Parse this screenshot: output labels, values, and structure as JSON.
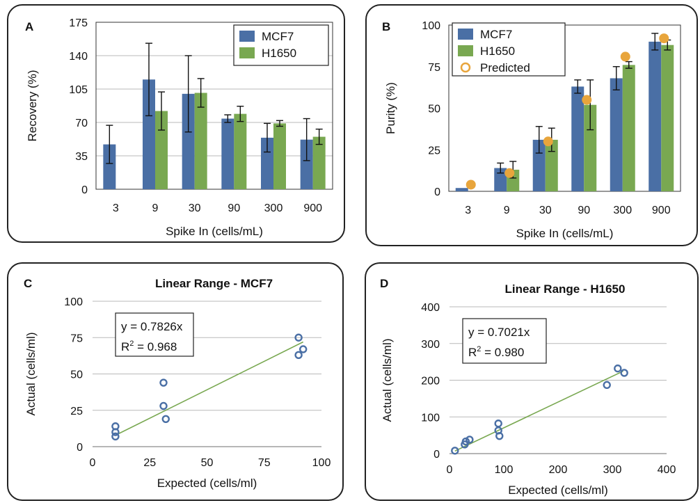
{
  "chart_data": [
    {
      "panel_letter": "A",
      "type": "bar",
      "ylabel": "Recovery (%)",
      "xlabel": "Spike In (cells/mL)",
      "ylim": [
        0,
        175
      ],
      "yticks": [
        0,
        35,
        70,
        105,
        140,
        175
      ],
      "grid": true,
      "legend_placement": "top-right",
      "categories": [
        "3",
        "9",
        "30",
        "90",
        "300",
        "900"
      ],
      "series": [
        {
          "name": "MCF7",
          "color": "#4a6fa5",
          "values": [
            47,
            115,
            100,
            74,
            54,
            52
          ],
          "errors": [
            20,
            38,
            40,
            4,
            15,
            22
          ]
        },
        {
          "name": "H1650",
          "color": "#79a851",
          "values": [
            null,
            82,
            101,
            79,
            69,
            55
          ],
          "errors": [
            null,
            20,
            15,
            8,
            3,
            8
          ]
        }
      ]
    },
    {
      "panel_letter": "B",
      "type": "bar",
      "ylabel": "Purity (%)",
      "xlabel": "Spike In (cells/mL)",
      "ylim": [
        0,
        100
      ],
      "yticks": [
        0,
        25,
        50,
        75,
        100
      ],
      "grid": false,
      "legend_placement": "top-left",
      "categories": [
        "3",
        "9",
        "30",
        "90",
        "300",
        "900"
      ],
      "series": [
        {
          "name": "MCF7",
          "color": "#4a6fa5",
          "values": [
            2,
            14,
            31,
            63,
            68,
            90
          ],
          "errors": [
            0,
            3,
            8,
            4,
            7,
            5
          ]
        },
        {
          "name": "H1650",
          "color": "#79a851",
          "values": [
            null,
            13,
            31,
            52,
            76,
            88
          ],
          "errors": [
            null,
            5,
            7,
            15,
            2,
            3
          ]
        }
      ],
      "points": {
        "name": "Predicted",
        "color": "#e8a53c",
        "values": [
          4,
          11,
          30,
          55,
          81,
          92
        ]
      }
    },
    {
      "panel_letter": "C",
      "type": "scatter",
      "title": "Linear Range - MCF7",
      "xlabel": "Expected (cells/ml)",
      "ylabel": "Actual (cells/ml)",
      "xlim": [
        0,
        100
      ],
      "ylim": [
        0,
        100
      ],
      "xticks": [
        0,
        25,
        50,
        75,
        100
      ],
      "yticks": [
        0,
        25,
        50,
        75,
        100
      ],
      "grid": true,
      "marker_color": "#4a6fa5",
      "line_color": "#79a851",
      "fit_slope": 0.7826,
      "fit_x_range": [
        10,
        92
      ],
      "equation": "y = 0.7826x",
      "r2_label": "R",
      "r2_sup": "2",
      "r2_value": " = 0.968",
      "points": [
        [
          10,
          14
        ],
        [
          10,
          10
        ],
        [
          10,
          7
        ],
        [
          31,
          44
        ],
        [
          31,
          28
        ],
        [
          32,
          19
        ],
        [
          90,
          75
        ],
        [
          90,
          63
        ],
        [
          92,
          67
        ]
      ]
    },
    {
      "panel_letter": "D",
      "type": "scatter",
      "title": "Linear Range - H1650",
      "xlabel": "Expected (cells/ml)",
      "ylabel": "Actual (cells/ml)",
      "xlim": [
        0,
        400
      ],
      "ylim": [
        0,
        400
      ],
      "xticks": [
        0,
        100,
        200,
        300,
        400
      ],
      "yticks": [
        0,
        100,
        200,
        300,
        400
      ],
      "grid": true,
      "marker_color": "#4a6fa5",
      "line_color": "#79a851",
      "fit_slope": 0.7021,
      "fit_x_range": [
        10,
        320
      ],
      "equation": "y = 0.7021x",
      "r2_label": "R",
      "r2_sup": "2",
      "r2_value": " = 0.980",
      "points": [
        [
          10,
          8
        ],
        [
          28,
          25
        ],
        [
          30,
          33
        ],
        [
          37,
          38
        ],
        [
          90,
          82
        ],
        [
          90,
          63
        ],
        [
          92,
          48
        ],
        [
          290,
          187
        ],
        [
          310,
          232
        ],
        [
          322,
          220
        ]
      ]
    }
  ]
}
